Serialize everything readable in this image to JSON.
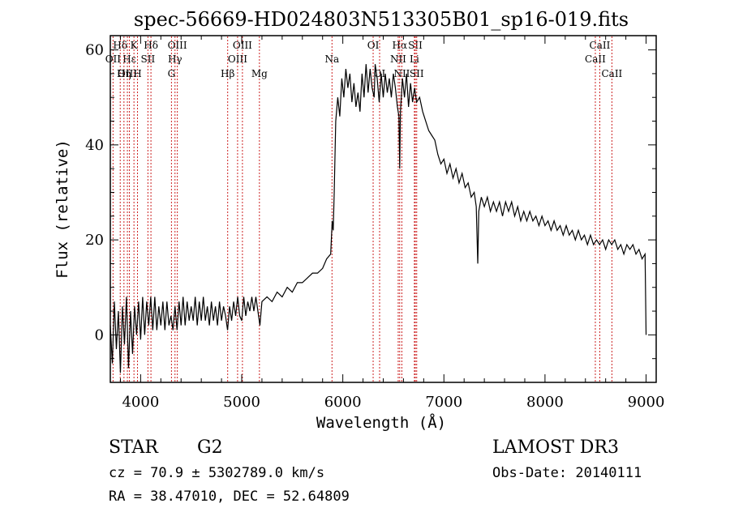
{
  "chart_data": {
    "type": "line",
    "title": "spec-56669-HD024803N513305B01_sp16-019.fits",
    "xlabel": "Wavelength (Å)",
    "ylabel": "Flux (relative)",
    "xlim": [
      3700,
      9100
    ],
    "ylim": [
      -10,
      63
    ],
    "xticks": [
      4000,
      5000,
      6000,
      7000,
      8000,
      9000
    ],
    "yticks": [
      0,
      20,
      40,
      60
    ],
    "grid": false,
    "line_color": "#000000",
    "marker_color": "#cc2222",
    "series": [
      {
        "values": [
          [
            3700,
            2
          ],
          [
            3720,
            -6
          ],
          [
            3740,
            7
          ],
          [
            3760,
            -3
          ],
          [
            3780,
            5
          ],
          [
            3800,
            -8
          ],
          [
            3820,
            6
          ],
          [
            3840,
            -2
          ],
          [
            3860,
            8
          ],
          [
            3880,
            -7
          ],
          [
            3900,
            5
          ],
          [
            3920,
            -4
          ],
          [
            3940,
            6
          ],
          [
            3960,
            0
          ],
          [
            3980,
            7
          ],
          [
            4000,
            -1
          ],
          [
            4020,
            8
          ],
          [
            4040,
            0
          ],
          [
            4060,
            7
          ],
          [
            4080,
            2
          ],
          [
            4100,
            8
          ],
          [
            4120,
            1
          ],
          [
            4140,
            8
          ],
          [
            4160,
            1
          ],
          [
            4180,
            6
          ],
          [
            4200,
            2
          ],
          [
            4220,
            7
          ],
          [
            4240,
            1
          ],
          [
            4260,
            7
          ],
          [
            4280,
            2
          ],
          [
            4300,
            4
          ],
          [
            4320,
            1
          ],
          [
            4340,
            6
          ],
          [
            4360,
            1
          ],
          [
            4380,
            7
          ],
          [
            4400,
            2
          ],
          [
            4420,
            8
          ],
          [
            4440,
            2
          ],
          [
            4460,
            7
          ],
          [
            4480,
            3
          ],
          [
            4500,
            6
          ],
          [
            4520,
            3
          ],
          [
            4540,
            8
          ],
          [
            4560,
            2
          ],
          [
            4580,
            7
          ],
          [
            4600,
            3
          ],
          [
            4620,
            8
          ],
          [
            4640,
            3
          ],
          [
            4660,
            6
          ],
          [
            4680,
            2
          ],
          [
            4700,
            7
          ],
          [
            4720,
            3
          ],
          [
            4740,
            6
          ],
          [
            4760,
            2
          ],
          [
            4780,
            7
          ],
          [
            4800,
            3
          ],
          [
            4820,
            6
          ],
          [
            4840,
            4
          ],
          [
            4860,
            1
          ],
          [
            4880,
            6
          ],
          [
            4900,
            3
          ],
          [
            4920,
            7
          ],
          [
            4940,
            4
          ],
          [
            4960,
            8
          ],
          [
            4980,
            4
          ],
          [
            5000,
            3
          ],
          [
            5020,
            8
          ],
          [
            5040,
            4
          ],
          [
            5060,
            7
          ],
          [
            5080,
            5
          ],
          [
            5100,
            8
          ],
          [
            5120,
            5
          ],
          [
            5140,
            8
          ],
          [
            5160,
            5
          ],
          [
            5180,
            2
          ],
          [
            5200,
            7
          ],
          [
            5250,
            8
          ],
          [
            5300,
            7
          ],
          [
            5350,
            9
          ],
          [
            5400,
            8
          ],
          [
            5450,
            10
          ],
          [
            5500,
            9
          ],
          [
            5550,
            11
          ],
          [
            5600,
            11
          ],
          [
            5650,
            12
          ],
          [
            5700,
            13
          ],
          [
            5750,
            13
          ],
          [
            5800,
            14
          ],
          [
            5840,
            16
          ],
          [
            5880,
            17
          ],
          [
            5895,
            24
          ],
          [
            5905,
            22
          ],
          [
            5915,
            30
          ],
          [
            5930,
            45
          ],
          [
            5950,
            50
          ],
          [
            5970,
            46
          ],
          [
            5990,
            54
          ],
          [
            6010,
            50
          ],
          [
            6030,
            56
          ],
          [
            6050,
            52
          ],
          [
            6070,
            55
          ],
          [
            6090,
            49
          ],
          [
            6110,
            53
          ],
          [
            6130,
            48
          ],
          [
            6150,
            51
          ],
          [
            6170,
            47
          ],
          [
            6190,
            55
          ],
          [
            6210,
            50
          ],
          [
            6230,
            57
          ],
          [
            6250,
            51
          ],
          [
            6270,
            56
          ],
          [
            6290,
            52
          ],
          [
            6310,
            50
          ],
          [
            6320,
            57
          ],
          [
            6340,
            54
          ],
          [
            6360,
            49
          ],
          [
            6380,
            55
          ],
          [
            6400,
            50
          ],
          [
            6420,
            55
          ],
          [
            6440,
            51
          ],
          [
            6460,
            54
          ],
          [
            6480,
            50
          ],
          [
            6500,
            55
          ],
          [
            6520,
            52
          ],
          [
            6540,
            48
          ],
          [
            6555,
            46
          ],
          [
            6563,
            35
          ],
          [
            6570,
            47
          ],
          [
            6590,
            54
          ],
          [
            6610,
            50
          ],
          [
            6630,
            55
          ],
          [
            6650,
            48
          ],
          [
            6670,
            53
          ],
          [
            6690,
            49
          ],
          [
            6710,
            52
          ],
          [
            6730,
            49
          ],
          [
            6760,
            50
          ],
          [
            6790,
            47
          ],
          [
            6820,
            45
          ],
          [
            6850,
            43
          ],
          [
            6880,
            42
          ],
          [
            6910,
            41
          ],
          [
            6940,
            38
          ],
          [
            6970,
            36
          ],
          [
            7000,
            37
          ],
          [
            7030,
            34
          ],
          [
            7060,
            36
          ],
          [
            7090,
            33
          ],
          [
            7120,
            35
          ],
          [
            7150,
            32
          ],
          [
            7180,
            34
          ],
          [
            7210,
            31
          ],
          [
            7240,
            32
          ],
          [
            7270,
            29
          ],
          [
            7300,
            30
          ],
          [
            7320,
            27
          ],
          [
            7335,
            15
          ],
          [
            7345,
            26
          ],
          [
            7370,
            29
          ],
          [
            7400,
            27
          ],
          [
            7430,
            29
          ],
          [
            7460,
            26
          ],
          [
            7490,
            28
          ],
          [
            7520,
            26
          ],
          [
            7550,
            28
          ],
          [
            7580,
            25
          ],
          [
            7610,
            28
          ],
          [
            7640,
            26
          ],
          [
            7670,
            28
          ],
          [
            7700,
            25
          ],
          [
            7730,
            27
          ],
          [
            7760,
            24
          ],
          [
            7790,
            26
          ],
          [
            7820,
            24
          ],
          [
            7850,
            26
          ],
          [
            7880,
            24
          ],
          [
            7910,
            25
          ],
          [
            7940,
            23
          ],
          [
            7970,
            25
          ],
          [
            8000,
            23
          ],
          [
            8030,
            24
          ],
          [
            8060,
            22
          ],
          [
            8090,
            24
          ],
          [
            8120,
            22
          ],
          [
            8150,
            23
          ],
          [
            8180,
            21
          ],
          [
            8210,
            23
          ],
          [
            8240,
            21
          ],
          [
            8270,
            22
          ],
          [
            8300,
            20
          ],
          [
            8330,
            22
          ],
          [
            8360,
            20
          ],
          [
            8390,
            21
          ],
          [
            8420,
            19
          ],
          [
            8450,
            21
          ],
          [
            8480,
            19
          ],
          [
            8510,
            20
          ],
          [
            8540,
            19
          ],
          [
            8570,
            20
          ],
          [
            8600,
            18
          ],
          [
            8630,
            20
          ],
          [
            8660,
            19
          ],
          [
            8690,
            20
          ],
          [
            8720,
            18
          ],
          [
            8750,
            19
          ],
          [
            8780,
            17
          ],
          [
            8810,
            19
          ],
          [
            8840,
            18
          ],
          [
            8870,
            19
          ],
          [
            8900,
            17
          ],
          [
            8930,
            18
          ],
          [
            8960,
            16
          ],
          [
            8990,
            17
          ],
          [
            9000,
            0
          ]
        ]
      }
    ],
    "annotations": [
      {
        "label": "Hδ",
        "x": 3798,
        "row": 1
      },
      {
        "label": "OII",
        "x": 3727,
        "row": 2
      },
      {
        "label": "OIII",
        "x": 3869,
        "row": 3
      },
      {
        "label": "Hε",
        "x": 3889,
        "row": 2
      },
      {
        "label": "Hη",
        "x": 3835,
        "row": 3
      },
      {
        "label": "K",
        "x": 3934,
        "row": 1
      },
      {
        "label": "H",
        "x": 3969,
        "row": 3
      },
      {
        "label": "SII",
        "x": 4072,
        "row": 2
      },
      {
        "label": "Hδ",
        "x": 4102,
        "row": 1
      },
      {
        "label": "OIII",
        "x": 4363,
        "row": 1
      },
      {
        "label": "Hγ",
        "x": 4340,
        "row": 2
      },
      {
        "label": "G",
        "x": 4305,
        "row": 3
      },
      {
        "label": "Hβ",
        "x": 4861,
        "row": 3
      },
      {
        "label": "OIII",
        "x": 5007,
        "row": 1
      },
      {
        "label": "OIII",
        "x": 4959,
        "row": 2
      },
      {
        "label": "Mg",
        "x": 5175,
        "row": 3
      },
      {
        "label": "Na",
        "x": 5893,
        "row": 2
      },
      {
        "label": "OI",
        "x": 6300,
        "row": 1
      },
      {
        "label": "OI",
        "x": 6364,
        "row": 3
      },
      {
        "label": "Hα",
        "x": 6563,
        "row": 1
      },
      {
        "label": "NII",
        "x": 6548,
        "row": 2
      },
      {
        "label": "NII",
        "x": 6584,
        "row": 3
      },
      {
        "label": "SII",
        "x": 6717,
        "row": 1
      },
      {
        "label": "Li",
        "x": 6708,
        "row": 2
      },
      {
        "label": "SII",
        "x": 6731,
        "row": 3
      },
      {
        "label": "CaII",
        "x": 8542,
        "row": 1
      },
      {
        "label": "CaII",
        "x": 8498,
        "row": 2
      },
      {
        "label": "CaII",
        "x": 8662,
        "row": 3
      }
    ]
  },
  "info": {
    "object_class": "STAR",
    "subclass": "G2",
    "survey": "LAMOST DR3",
    "cz_line": "cz = 70.9 ± 5302789.0 km/s",
    "obs_date_line": "Obs-Date: 20140111",
    "radec_line": "RA =  38.47010, DEC =  52.64809"
  }
}
